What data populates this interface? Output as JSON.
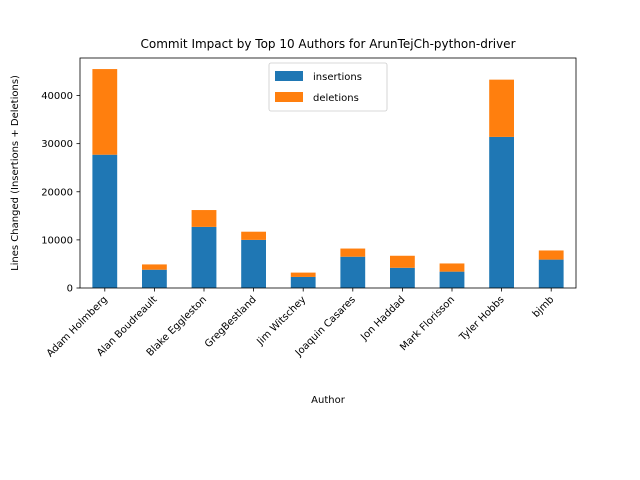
{
  "chart_data": {
    "type": "bar",
    "stacked": true,
    "title": "Commit Impact by Top 10 Authors for ArunTejCh-python-driver",
    "xlabel": "Author",
    "ylabel": "Lines Changed (Insertions + Deletions)",
    "categories": [
      "Adam Holmberg",
      "Alan Boudreault",
      "Blake Eggleston",
      "GregBestland",
      "Jim Witschey",
      "Joaquin Casares",
      "Jon Haddad",
      "Mark Florisson",
      "Tyler Hobbs",
      "bjmb"
    ],
    "series": [
      {
        "name": "insertions",
        "color": "#1f77b4",
        "values": [
          27700,
          3800,
          12700,
          10000,
          2300,
          6500,
          4200,
          3400,
          31400,
          5900
        ]
      },
      {
        "name": "deletions",
        "color": "#ff7f0e",
        "values": [
          17800,
          1100,
          3500,
          1700,
          900,
          1700,
          2500,
          1700,
          11900,
          1900
        ]
      }
    ],
    "ylim": [
      0,
      47800
    ],
    "yticks": [
      0,
      10000,
      20000,
      30000,
      40000
    ],
    "grid": false,
    "legend_position": "top-center"
  }
}
